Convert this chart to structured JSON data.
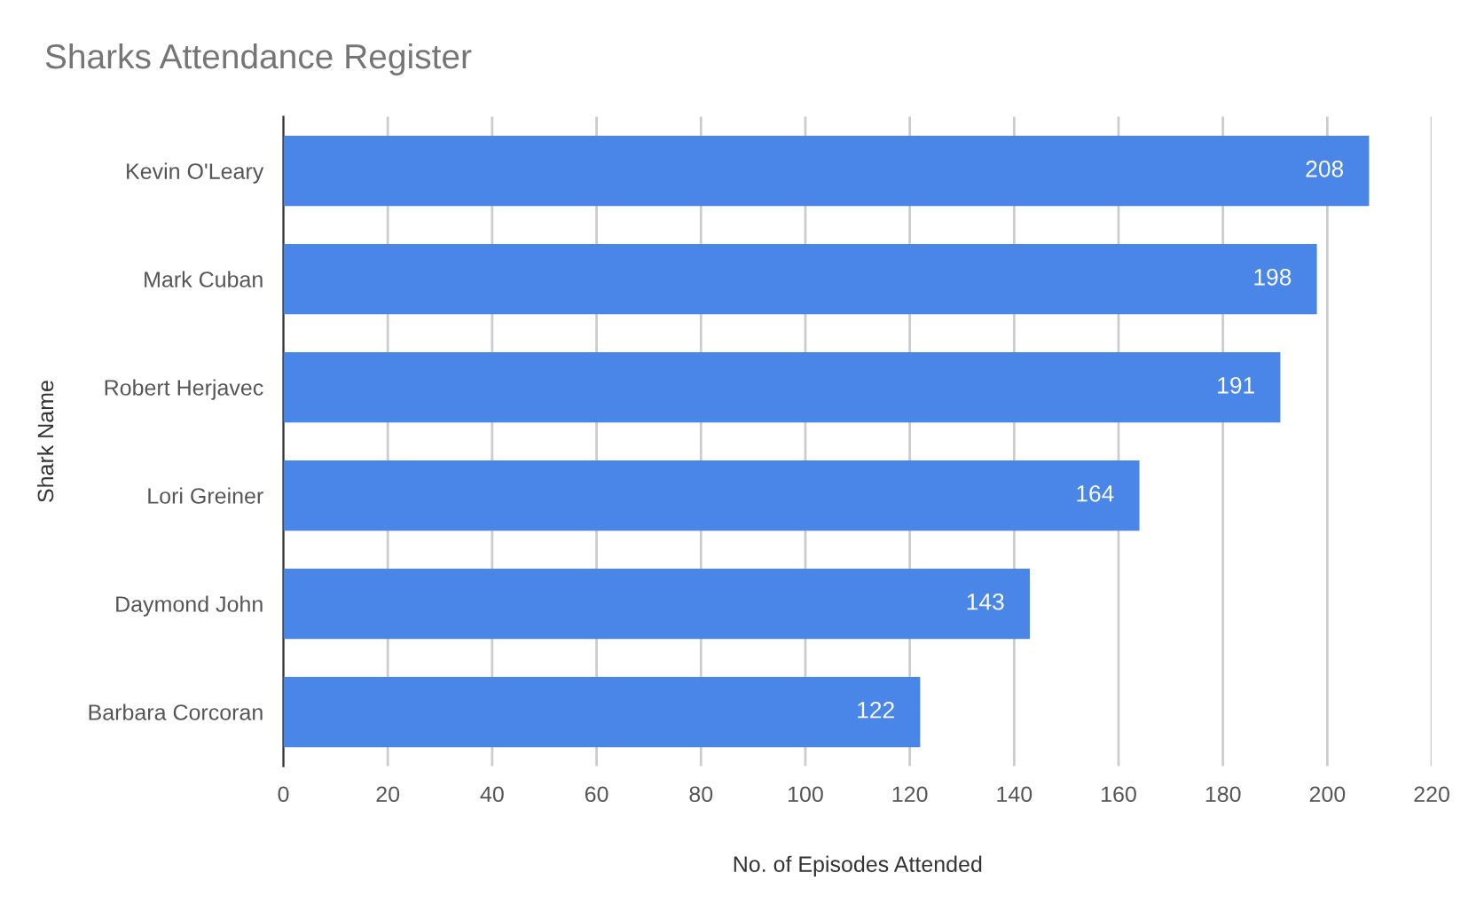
{
  "chart_data": {
    "type": "bar",
    "orientation": "horizontal",
    "title": "Sharks Attendance Register",
    "xlabel": "No. of Episodes Attended",
    "ylabel": "Shark Name",
    "categories": [
      "Kevin O'Leary",
      "Mark Cuban",
      "Robert Herjavec",
      "Lori Greiner",
      "Daymond John",
      "Barbara Corcoran"
    ],
    "values": [
      208,
      198,
      191,
      164,
      143,
      122
    ],
    "color": "#4a86e8",
    "xlim": [
      0,
      220
    ],
    "xticks": [
      0,
      20,
      40,
      60,
      80,
      100,
      120,
      140,
      160,
      180,
      200,
      220
    ],
    "grid": "x",
    "data_labels": true,
    "legend": false
  }
}
